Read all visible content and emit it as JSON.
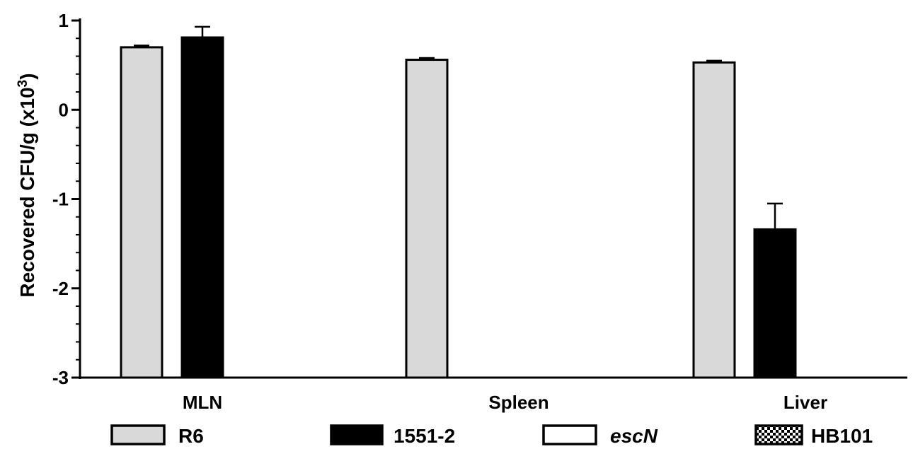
{
  "chart_data": {
    "type": "bar",
    "title": "",
    "xlabel": "",
    "ylabel": "Recovered CFU/g (x10",
    "ylabel_exponent": "3",
    "ylabel_close": ")",
    "ylim": [
      -3,
      1
    ],
    "yticks": [
      -3,
      -2,
      -1,
      0,
      1
    ],
    "ytick_labels": [
      "-3",
      "-2",
      "-1",
      "0",
      "1"
    ],
    "categories": [
      "MLN",
      "Spleen",
      "Liver"
    ],
    "series": [
      {
        "name": "R6",
        "pattern": "solid",
        "color": "#d9d9d9",
        "values": [
          0.7,
          0.56,
          0.53
        ],
        "errors": [
          0.02,
          0.02,
          0.02
        ]
      },
      {
        "name": "1551-2",
        "pattern": "solid",
        "color": "#000000",
        "values": [
          0.81,
          null,
          -1.34
        ],
        "errors": [
          0.12,
          null,
          0.29
        ]
      },
      {
        "name": "escN",
        "pattern": "solid",
        "color": "#ffffff",
        "italic": true,
        "values": [
          null,
          null,
          null
        ],
        "errors": [
          null,
          null,
          null
        ]
      },
      {
        "name": "HB101",
        "pattern": "checker",
        "color": "#000000",
        "values": [
          null,
          null,
          null
        ],
        "errors": [
          null,
          null,
          null
        ]
      }
    ],
    "legend_position": "bottom",
    "grid": false
  }
}
